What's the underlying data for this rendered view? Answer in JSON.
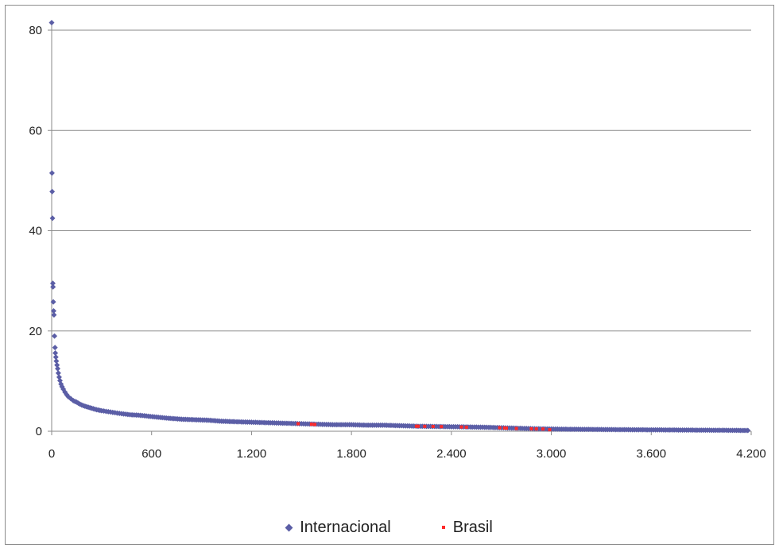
{
  "chart_data": {
    "type": "scatter",
    "title": "",
    "xlabel": "",
    "ylabel": "",
    "xlim": [
      0,
      4200
    ],
    "ylim": [
      0,
      80
    ],
    "x_ticks": [
      0,
      600,
      1200,
      1800,
      2400,
      3000,
      3600,
      4200
    ],
    "x_tick_labels": [
      "0",
      "600",
      "1.200",
      "1.800",
      "2.400",
      "3.000",
      "3.600",
      "4.200"
    ],
    "y_ticks": [
      0,
      20,
      40,
      60,
      80
    ],
    "y_tick_labels": [
      "0",
      "20",
      "40",
      "60",
      "80"
    ],
    "grid": "horizontal",
    "legend_position": "bottom",
    "series": [
      {
        "name": "Internacional",
        "color": "#5b5ea6",
        "marker": "diamond",
        "points": [
          [
            0,
            81.5
          ],
          [
            2,
            51.5
          ],
          [
            3,
            47.8
          ],
          [
            5,
            42.5
          ],
          [
            7,
            29.5
          ],
          [
            8,
            28.8
          ],
          [
            10,
            25.8
          ],
          [
            12,
            24
          ],
          [
            14,
            23.2
          ],
          [
            17,
            19
          ],
          [
            20,
            16.7
          ],
          [
            22,
            15.6
          ],
          [
            25,
            14.8
          ],
          [
            28,
            14
          ],
          [
            32,
            13.2
          ],
          [
            36,
            12.5
          ],
          [
            40,
            11.6
          ],
          [
            45,
            10.8
          ],
          [
            50,
            10.1
          ],
          [
            56,
            9.4
          ],
          [
            62,
            8.9
          ],
          [
            70,
            8.4
          ],
          [
            80,
            7.8
          ],
          [
            90,
            7.3
          ],
          [
            100,
            6.9
          ],
          [
            115,
            6.5
          ],
          [
            130,
            6.1
          ],
          [
            150,
            5.8
          ],
          [
            170,
            5.4
          ],
          [
            190,
            5.1
          ],
          [
            210,
            4.9
          ],
          [
            240,
            4.6
          ],
          [
            270,
            4.3
          ],
          [
            300,
            4.1
          ],
          [
            340,
            3.9
          ],
          [
            380,
            3.7
          ],
          [
            420,
            3.5
          ],
          [
            470,
            3.3
          ],
          [
            520,
            3.2
          ],
          [
            580,
            3.0
          ],
          [
            640,
            2.8
          ],
          [
            700,
            2.6
          ],
          [
            780,
            2.4
          ],
          [
            860,
            2.3
          ],
          [
            940,
            2.2
          ],
          [
            1020,
            2.0
          ],
          [
            1100,
            1.9
          ],
          [
            1200,
            1.8
          ],
          [
            1300,
            1.7
          ],
          [
            1400,
            1.6
          ],
          [
            1500,
            1.5
          ],
          [
            1600,
            1.4
          ],
          [
            1700,
            1.3
          ],
          [
            1800,
            1.3
          ],
          [
            1900,
            1.2
          ],
          [
            2000,
            1.2
          ],
          [
            2100,
            1.1
          ],
          [
            2200,
            1.0
          ],
          [
            2300,
            0.95
          ],
          [
            2400,
            0.9
          ],
          [
            2500,
            0.85
          ],
          [
            2600,
            0.8
          ],
          [
            2700,
            0.7
          ],
          [
            2800,
            0.6
          ],
          [
            2900,
            0.5
          ],
          [
            3000,
            0.45
          ],
          [
            3100,
            0.4
          ],
          [
            3200,
            0.38
          ],
          [
            3300,
            0.35
          ],
          [
            3400,
            0.32
          ],
          [
            3500,
            0.3
          ],
          [
            3600,
            0.28
          ],
          [
            3700,
            0.26
          ],
          [
            3800,
            0.24
          ],
          [
            3900,
            0.22
          ],
          [
            4000,
            0.2
          ],
          [
            4100,
            0.18
          ],
          [
            4180,
            0.15
          ]
        ]
      },
      {
        "name": "Brasil",
        "color": "#ff2a2a",
        "marker": "square",
        "points": [
          [
            1480,
            1.5
          ],
          [
            1560,
            1.4
          ],
          [
            1580,
            1.35
          ],
          [
            2190,
            1.0
          ],
          [
            2200,
            1.0
          ],
          [
            2240,
            0.98
          ],
          [
            2290,
            0.95
          ],
          [
            2340,
            0.92
          ],
          [
            2460,
            0.85
          ],
          [
            2490,
            0.8
          ],
          [
            2690,
            0.7
          ],
          [
            2720,
            0.65
          ],
          [
            2730,
            0.62
          ],
          [
            2790,
            0.55
          ],
          [
            2880,
            0.5
          ],
          [
            2910,
            0.48
          ],
          [
            2950,
            0.45
          ],
          [
            2990,
            0.3
          ]
        ]
      }
    ]
  }
}
